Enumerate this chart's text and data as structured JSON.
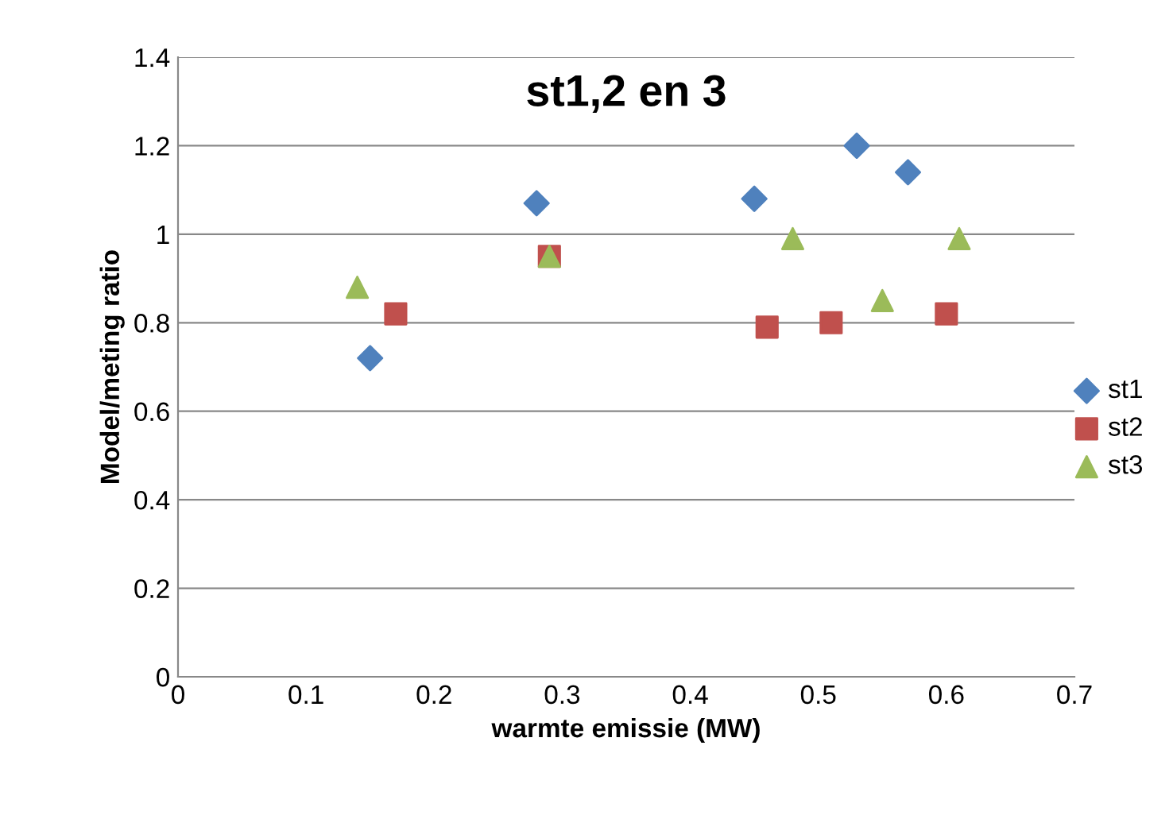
{
  "chart_data": {
    "type": "scatter",
    "title": "st1,2 en 3",
    "xlabel": "warmte emissie (MW)",
    "ylabel": "Model/meting ratio",
    "series": [
      {
        "name": "st1",
        "color": "#4f81bd",
        "marker": "diamond",
        "x": [
          0.15,
          0.28,
          0.45,
          0.53,
          0.57
        ],
        "values": [
          0.72,
          1.07,
          1.08,
          1.2,
          1.14
        ]
      },
      {
        "name": "st2",
        "color": "#c0504d",
        "marker": "square",
        "x": [
          0.17,
          0.29,
          0.46,
          0.51,
          0.6
        ],
        "values": [
          0.82,
          0.95,
          0.79,
          0.8,
          0.82
        ]
      },
      {
        "name": "st3",
        "color": "#9bbb59",
        "marker": "triangle",
        "x": [
          0.14,
          0.29,
          0.48,
          0.55,
          0.61
        ],
        "values": [
          0.88,
          0.95,
          0.99,
          0.85,
          0.99
        ]
      }
    ],
    "xlim": [
      0,
      0.7
    ],
    "xticks": [
      0,
      0.1,
      0.2,
      0.3,
      0.4,
      0.5,
      0.6,
      0.7
    ],
    "ylim": [
      0,
      1.4
    ],
    "yticks": [
      0,
      0.2,
      0.4,
      0.6,
      0.8,
      1,
      1.2,
      1.4
    ],
    "grid": "y",
    "legend": "right"
  }
}
